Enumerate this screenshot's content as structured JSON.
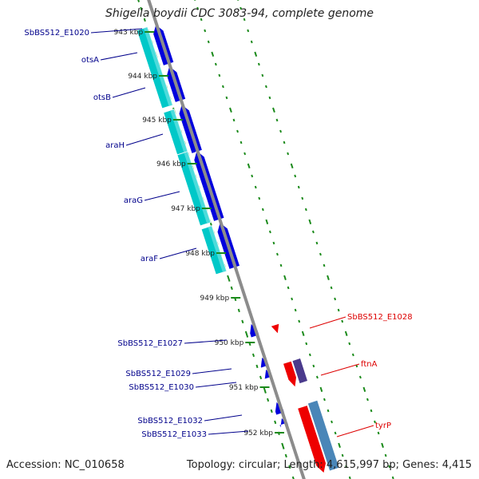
{
  "title": "Shigella boydii CDC 3083-94, complete genome",
  "footer": {
    "accession": "Accession: NC_010658",
    "summary": "Topology: circular; Length: 4,615,997 bp; Genes: 4,415"
  },
  "colors": {
    "backbone": "#8c8c8c",
    "ticks": "#1a8a1a",
    "forward_label": "#00008b",
    "reverse_label": "#dd0000",
    "cds_forward": "#0000dd",
    "cds_reverse": "#ee0000",
    "cog_forward": "#00c8c8",
    "cog_reverse_a": "#4a3a8c",
    "cog_reverse_b": "#4a86b8"
  },
  "kbp_ticks": [
    "943 kbp",
    "944 kbp",
    "945 kbp",
    "946 kbp",
    "947 kbp",
    "948 kbp",
    "949 kbp",
    "950 kbp",
    "951 kbp",
    "952 kbp"
  ],
  "forward_genes": [
    "SbBS512_E1020",
    "otsA",
    "otsB",
    "araH",
    "araG",
    "araF",
    "SbBS512_E1027",
    "SbBS512_E1029",
    "SbBS512_E1030",
    "SbBS512_E1032",
    "SbBS512_E1033"
  ],
  "reverse_genes": [
    "SbBS512_E1028",
    "ftnA",
    "tyrP"
  ]
}
